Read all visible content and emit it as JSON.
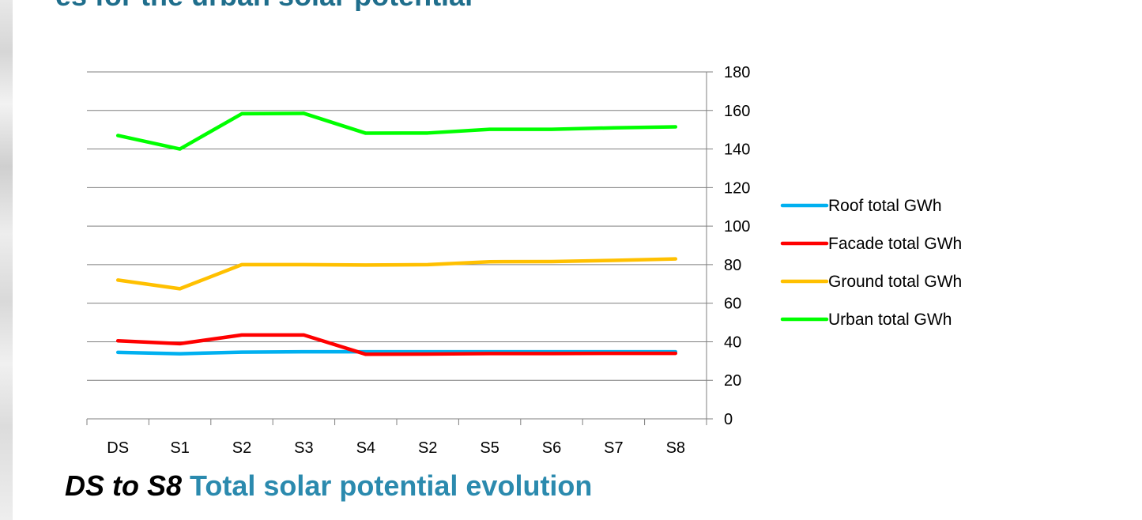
{
  "chart_data": {
    "type": "line",
    "categories": [
      "DS",
      "S1",
      "S2",
      "S3",
      "S4",
      "S2",
      "S5",
      "S6",
      "S7",
      "S8"
    ],
    "ylim": [
      0,
      180
    ],
    "yticks": [
      0,
      20,
      40,
      60,
      80,
      100,
      120,
      140,
      160,
      180
    ],
    "y_axis_side": "right",
    "grid": "horizontal",
    "legend_position": "right",
    "series": [
      {
        "name": "Roof total GWh",
        "color": "#00b0f0",
        "values": [
          34.5,
          33.8,
          34.6,
          34.8,
          34.8,
          34.8,
          34.8,
          34.8,
          34.8,
          34.8
        ]
      },
      {
        "name": "Facade total GWh",
        "color": "#ff0000",
        "values": [
          40.5,
          39,
          43.5,
          43.5,
          33.5,
          33.6,
          33.9,
          33.9,
          34,
          34
        ]
      },
      {
        "name": "Ground total GWh",
        "color": "#ffc000",
        "values": [
          72,
          67.5,
          80,
          80,
          79.8,
          80,
          81.5,
          81.6,
          82.2,
          83
        ]
      },
      {
        "name": "Urban total GWh",
        "color": "#00ff00",
        "values": [
          147,
          140,
          158.3,
          158.5,
          148.2,
          148.3,
          150.2,
          150.2,
          151,
          151.5
        ]
      }
    ]
  },
  "caption": {
    "range": "DS to S8",
    "text": "Total solar potential evolution"
  },
  "top_fragment": "es for the urban solar potential"
}
